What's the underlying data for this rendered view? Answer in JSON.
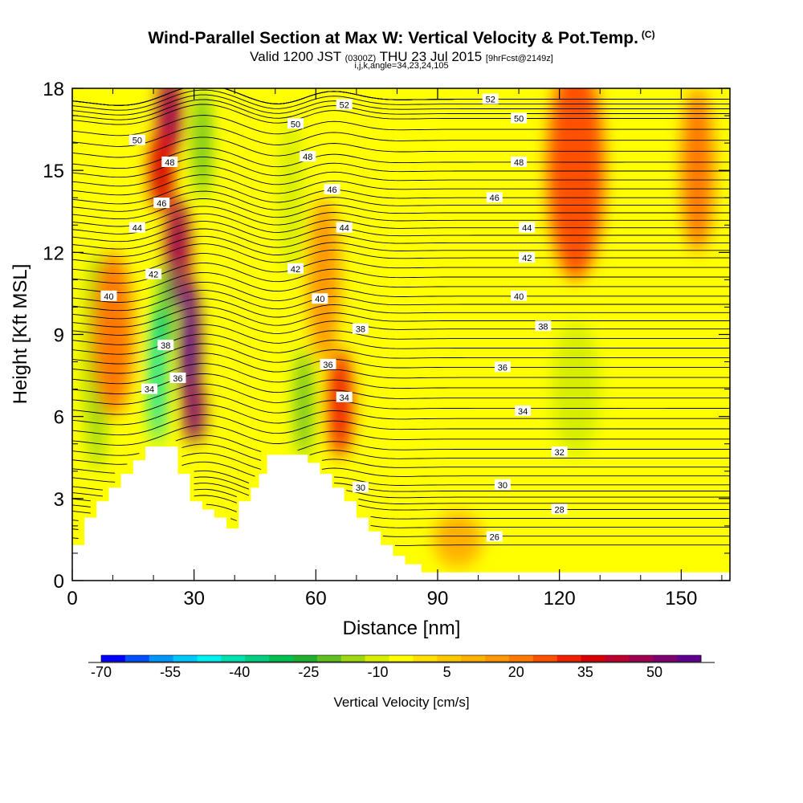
{
  "title": {
    "main": "Wind-Parallel Section at Max W: Vertical Velocity & Pot.Temp.",
    "copyright": "(C)",
    "valid_prefix": "Valid 1200 JST",
    "valid_utc": "(0300Z)",
    "valid_date": "THU 23 Jul 2015",
    "forecast": "[9hrFcst@2149z]",
    "indices": "i,j,k,angle=34,23,24,105"
  },
  "chart_data": {
    "type": "heatmap",
    "xlabel": "Distance [nm]",
    "ylabel": "Height [Kft MSL]",
    "xlim": [
      0,
      162
    ],
    "ylim": [
      0,
      18
    ],
    "x_ticks": [
      0,
      30,
      60,
      90,
      120,
      150
    ],
    "y_ticks": [
      0,
      3,
      6,
      9,
      12,
      15,
      18
    ],
    "colorbar": {
      "label": "Vertical Velocity [cm/s]",
      "tick_labels": [
        "-70",
        "-55",
        "-40",
        "-25",
        "-10",
        "5",
        "20",
        "35",
        "50"
      ],
      "colors": [
        "#0000ff",
        "#0050ff",
        "#0096ff",
        "#00c8ff",
        "#00f0f0",
        "#00e0b0",
        "#00d080",
        "#00c050",
        "#20b030",
        "#60c020",
        "#a0d810",
        "#d8ee00",
        "#ffff00",
        "#ffe000",
        "#ffc800",
        "#ffb000",
        "#ff9800",
        "#ff7800",
        "#ff5000",
        "#f02000",
        "#d80000",
        "#c00030",
        "#a00050",
        "#800070",
        "#600090"
      ]
    },
    "terrain_kft": [
      [
        0,
        1.3
      ],
      [
        3,
        1.3
      ],
      [
        3,
        2.3
      ],
      [
        6,
        2.3
      ],
      [
        6,
        2.9
      ],
      [
        9,
        2.9
      ],
      [
        9,
        3.4
      ],
      [
        12,
        3.4
      ],
      [
        12,
        3.9
      ],
      [
        15,
        3.9
      ],
      [
        15,
        4.4
      ],
      [
        18,
        4.4
      ],
      [
        18,
        4.9
      ],
      [
        26,
        4.9
      ],
      [
        26,
        3.9
      ],
      [
        29,
        3.9
      ],
      [
        29,
        2.9
      ],
      [
        32,
        2.9
      ],
      [
        32,
        2.6
      ],
      [
        35,
        2.6
      ],
      [
        35,
        2.3
      ],
      [
        38,
        2.3
      ],
      [
        38,
        1.9
      ],
      [
        41,
        1.9
      ],
      [
        41,
        2.9
      ],
      [
        44,
        2.9
      ],
      [
        44,
        3.4
      ],
      [
        46,
        3.4
      ],
      [
        46,
        3.9
      ],
      [
        48,
        3.9
      ],
      [
        48,
        4.6
      ],
      [
        58,
        4.6
      ],
      [
        58,
        4.3
      ],
      [
        61,
        4.3
      ],
      [
        61,
        3.9
      ],
      [
        64,
        3.9
      ],
      [
        64,
        3.4
      ],
      [
        67,
        3.4
      ],
      [
        67,
        2.9
      ],
      [
        70,
        2.9
      ],
      [
        70,
        2.3
      ],
      [
        73,
        2.3
      ],
      [
        73,
        1.8
      ],
      [
        76,
        1.8
      ],
      [
        76,
        1.3
      ],
      [
        79,
        1.3
      ],
      [
        79,
        0.9
      ],
      [
        82,
        0.9
      ],
      [
        82,
        0.6
      ],
      [
        86,
        0.6
      ],
      [
        86,
        0.3
      ],
      [
        162,
        0.3
      ]
    ],
    "vertical_velocity_cells": [
      {
        "x": 24,
        "y": 17,
        "rx": 3,
        "ry": 1.5,
        "value": 45
      },
      {
        "x": 22,
        "y": 15,
        "rx": 3,
        "ry": 1.5,
        "value": 35
      },
      {
        "x": 26,
        "y": 12,
        "rx": 3,
        "ry": 2,
        "value": 45
      },
      {
        "x": 29,
        "y": 8.5,
        "rx": 2.5,
        "ry": 2.5,
        "value": 55
      },
      {
        "x": 30,
        "y": 6.2,
        "rx": 2.5,
        "ry": 1.2,
        "value": 50
      },
      {
        "x": 21,
        "y": 7.5,
        "rx": 2,
        "ry": 2.5,
        "value": -45
      },
      {
        "x": 23,
        "y": 10,
        "rx": 1.5,
        "ry": 1.5,
        "value": -35
      },
      {
        "x": 32,
        "y": 16,
        "rx": 2,
        "ry": 2,
        "value": -25
      },
      {
        "x": 6,
        "y": 8,
        "rx": 3,
        "ry": 4,
        "value": -20
      },
      {
        "x": 10,
        "y": 9,
        "rx": 5,
        "ry": 3,
        "value": 18
      },
      {
        "x": 57,
        "y": 6.5,
        "rx": 2,
        "ry": 2,
        "value": -25
      },
      {
        "x": 66,
        "y": 6.5,
        "rx": 3,
        "ry": 2,
        "value": 30
      },
      {
        "x": 62,
        "y": 11,
        "rx": 4,
        "ry": 3,
        "value": 15
      },
      {
        "x": 54,
        "y": 14,
        "rx": 3,
        "ry": 3,
        "value": -15
      },
      {
        "x": 124,
        "y": 15,
        "rx": 5,
        "ry": 2.5,
        "value": 40
      },
      {
        "x": 124,
        "y": 15,
        "rx": 7,
        "ry": 4,
        "value": 22
      },
      {
        "x": 154,
        "y": 15,
        "rx": 4,
        "ry": 3,
        "value": 18
      },
      {
        "x": 124,
        "y": 7,
        "rx": 6,
        "ry": 2.5,
        "value": -12
      },
      {
        "x": 150,
        "y": 4,
        "rx": 5,
        "ry": 2,
        "value": -8
      },
      {
        "x": 95,
        "y": 1.5,
        "rx": 6,
        "ry": 1,
        "value": 10
      }
    ],
    "potential_temperature_contours": [
      26,
      28,
      30,
      32,
      34,
      36,
      38,
      40,
      42,
      44,
      46,
      48,
      50,
      52
    ],
    "contour_labels": [
      {
        "text": "52",
        "x": 67,
        "y": 17.4
      },
      {
        "text": "52",
        "x": 103,
        "y": 17.6
      },
      {
        "text": "50",
        "x": 16,
        "y": 16.1
      },
      {
        "text": "50",
        "x": 55,
        "y": 16.7
      },
      {
        "text": "50",
        "x": 110,
        "y": 16.9
      },
      {
        "text": "48",
        "x": 24,
        "y": 15.3
      },
      {
        "text": "48",
        "x": 58,
        "y": 15.5
      },
      {
        "text": "48",
        "x": 110,
        "y": 15.3
      },
      {
        "text": "46",
        "x": 22,
        "y": 13.8
      },
      {
        "text": "46",
        "x": 64,
        "y": 14.3
      },
      {
        "text": "46",
        "x": 104,
        "y": 14.0
      },
      {
        "text": "44",
        "x": 16,
        "y": 12.9
      },
      {
        "text": "44",
        "x": 67,
        "y": 12.9
      },
      {
        "text": "44",
        "x": 112,
        "y": 12.9
      },
      {
        "text": "42",
        "x": 20,
        "y": 11.2
      },
      {
        "text": "42",
        "x": 55,
        "y": 11.4
      },
      {
        "text": "42",
        "x": 112,
        "y": 11.8
      },
      {
        "text": "40",
        "x": 9,
        "y": 10.4
      },
      {
        "text": "40",
        "x": 61,
        "y": 10.3
      },
      {
        "text": "40",
        "x": 110,
        "y": 10.4
      },
      {
        "text": "38",
        "x": 23,
        "y": 8.6
      },
      {
        "text": "38",
        "x": 71,
        "y": 9.2
      },
      {
        "text": "38",
        "x": 116,
        "y": 9.3
      },
      {
        "text": "36",
        "x": 26,
        "y": 7.4
      },
      {
        "text": "36",
        "x": 63,
        "y": 7.9
      },
      {
        "text": "36",
        "x": 106,
        "y": 7.8
      },
      {
        "text": "34",
        "x": 19,
        "y": 7.0
      },
      {
        "text": "34",
        "x": 67,
        "y": 6.7
      },
      {
        "text": "34",
        "x": 111,
        "y": 6.2
      },
      {
        "text": "32",
        "x": 120,
        "y": 4.7
      },
      {
        "text": "30",
        "x": 71,
        "y": 3.4
      },
      {
        "text": "30",
        "x": 106,
        "y": 3.5
      },
      {
        "text": "28",
        "x": 120,
        "y": 2.6
      },
      {
        "text": "26",
        "x": 104,
        "y": 1.6
      }
    ]
  }
}
